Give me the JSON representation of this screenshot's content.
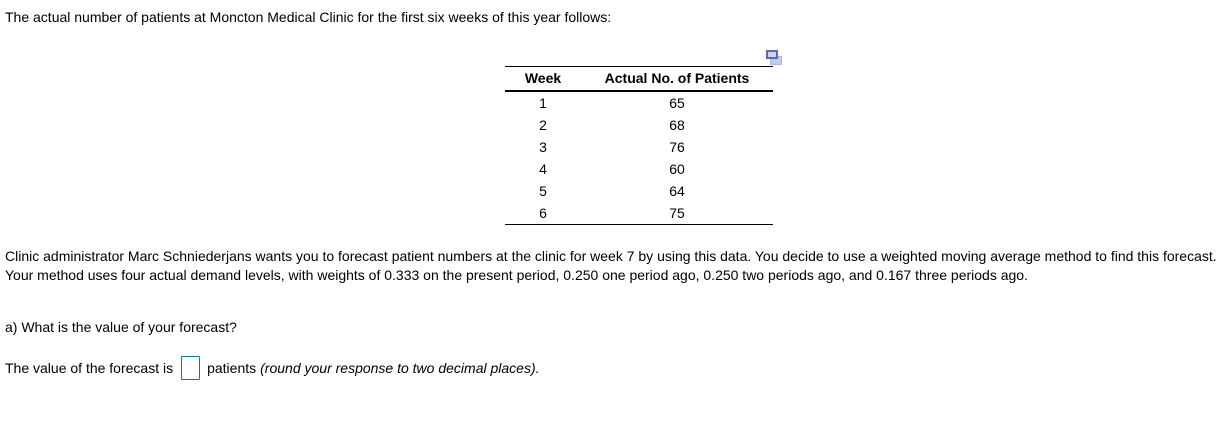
{
  "intro": "The actual number of patients at Moncton Medical Clinic for the first six weeks of this year follows:",
  "table": {
    "headers": [
      "Week",
      "Actual No. of Patients"
    ],
    "rows": [
      [
        "1",
        "65"
      ],
      [
        "2",
        "68"
      ],
      [
        "3",
        "76"
      ],
      [
        "4",
        "60"
      ],
      [
        "5",
        "64"
      ],
      [
        "6",
        "75"
      ]
    ]
  },
  "icons": {
    "copy_table": "copy-table-icon"
  },
  "paragraph": "Clinic administrator Marc Schniederjans wants you to forecast patient numbers at the clinic for week 7 by using this data. You decide to use a weighted moving average method to find this forecast. Your method uses four actual demand levels, with weights of 0.333 on the present period, 0.250 one period ago, 0.250 two periods ago, and 0.167 three periods ago.",
  "question_a": "a) What is the value of your forecast?",
  "answer": {
    "prefix": "The value of the forecast is",
    "input_value": "",
    "suffix": "patients",
    "hint_italic": "(round your response to two decimal places)."
  },
  "colors": {
    "text": "#000000",
    "answer_box_border": "#107c8d",
    "icon_front_border": "#5b6bae",
    "icon_front_fill": "#ccd3ef",
    "icon_back_fill": "#c3cbeb",
    "icon_back_border": "#aab5e0"
  }
}
